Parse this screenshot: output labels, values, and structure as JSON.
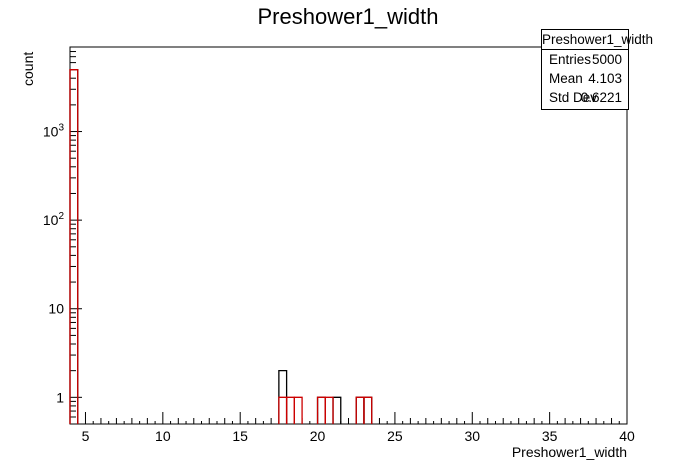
{
  "chart_data": {
    "type": "histogram",
    "title": "Preshower1_width",
    "xlabel": "Preshower1_width",
    "ylabel": "count",
    "xlim": [
      4,
      40
    ],
    "ylim": [
      0.5,
      9000
    ],
    "y_scale": "log",
    "x_ticks": [
      "5",
      "10",
      "15",
      "20",
      "25",
      "30",
      "35",
      "40"
    ],
    "y_ticks": [
      "1",
      "10",
      "10^2",
      "10^3"
    ],
    "bin_width": 0.5,
    "series": [
      {
        "color": "#000000",
        "bins": [
          {
            "x": 4.0,
            "count": 4994
          },
          {
            "x": 17.5,
            "count": 2
          },
          {
            "x": 20.0,
            "count": 1
          },
          {
            "x": 21.0,
            "count": 1
          },
          {
            "x": 22.5,
            "count": 1
          },
          {
            "x": 23.0,
            "count": 1
          }
        ]
      },
      {
        "color": "#cc0000",
        "bins": [
          {
            "x": 4.0,
            "count": 4993
          },
          {
            "x": 17.5,
            "count": 1
          },
          {
            "x": 18.0,
            "count": 1
          },
          {
            "x": 18.5,
            "count": 1
          },
          {
            "x": 20.0,
            "count": 1
          },
          {
            "x": 20.5,
            "count": 1
          },
          {
            "x": 22.5,
            "count": 1
          },
          {
            "x": 23.0,
            "count": 1
          }
        ]
      }
    ]
  },
  "stats": {
    "name": "Preshower1_width",
    "entries_label": "Entries",
    "entries_value": "5000",
    "mean_label": "Mean",
    "mean_value": "4.103",
    "stddev_label": "Std Dev",
    "stddev_value": "0.6221"
  }
}
